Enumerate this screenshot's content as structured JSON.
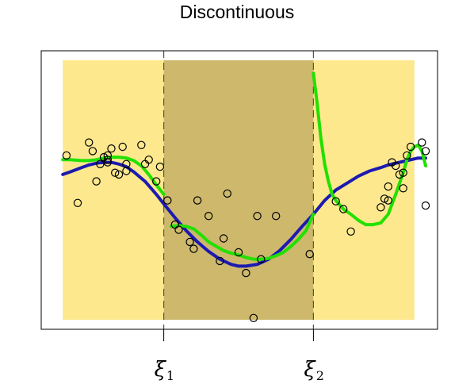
{
  "chart_data": {
    "type": "scatter",
    "title": "Discontinuous",
    "xlabel": "",
    "ylabel": "",
    "xlim": [
      0,
      1
    ],
    "ylim": [
      -1.5,
      1.5
    ],
    "axis_ticks_shown": false,
    "knots": [
      {
        "x": 0.3,
        "symbol": "ξ",
        "subscript": "1"
      },
      {
        "x": 0.7,
        "symbol": "ξ",
        "subscript": "2"
      }
    ],
    "regions": [
      {
        "from": 0.03,
        "to": 0.3,
        "color": "#fde88e"
      },
      {
        "from": 0.3,
        "to": 0.7,
        "color": "#cdb86c"
      },
      {
        "from": 0.7,
        "to": 0.97,
        "color": "#fde88e"
      }
    ],
    "points": [
      [
        0.04,
        0.4
      ],
      [
        0.07,
        -0.15
      ],
      [
        0.1,
        0.55
      ],
      [
        0.11,
        0.45
      ],
      [
        0.12,
        0.1
      ],
      [
        0.13,
        0.3
      ],
      [
        0.14,
        0.38
      ],
      [
        0.15,
        0.4
      ],
      [
        0.15,
        0.35
      ],
      [
        0.15,
        0.32
      ],
      [
        0.16,
        0.48
      ],
      [
        0.17,
        0.2
      ],
      [
        0.18,
        0.18
      ],
      [
        0.19,
        0.5
      ],
      [
        0.2,
        0.22
      ],
      [
        0.2,
        0.3
      ],
      [
        0.24,
        0.52
      ],
      [
        0.25,
        0.3
      ],
      [
        0.26,
        0.35
      ],
      [
        0.28,
        0.1
      ],
      [
        0.29,
        0.27
      ],
      [
        0.31,
        -0.12
      ],
      [
        0.33,
        -0.4
      ],
      [
        0.34,
        -0.46
      ],
      [
        0.37,
        -0.6
      ],
      [
        0.38,
        -0.68
      ],
      [
        0.39,
        -0.12
      ],
      [
        0.42,
        -0.3
      ],
      [
        0.45,
        -0.82
      ],
      [
        0.46,
        -0.56
      ],
      [
        0.47,
        -0.04
      ],
      [
        0.5,
        -0.72
      ],
      [
        0.52,
        -0.96
      ],
      [
        0.54,
        -1.48
      ],
      [
        0.55,
        -0.3
      ],
      [
        0.56,
        -0.8
      ],
      [
        0.6,
        -0.3
      ],
      [
        0.69,
        -0.74
      ],
      [
        0.76,
        -0.13
      ],
      [
        0.78,
        -0.22
      ],
      [
        0.8,
        -0.48
      ],
      [
        0.88,
        -0.2
      ],
      [
        0.89,
        -0.1
      ],
      [
        0.9,
        -0.12
      ],
      [
        0.9,
        0.04
      ],
      [
        0.91,
        0.32
      ],
      [
        0.92,
        0.28
      ],
      [
        0.93,
        0.18
      ],
      [
        0.94,
        0.2
      ],
      [
        0.94,
        0.02
      ],
      [
        0.95,
        0.4
      ],
      [
        0.96,
        0.5
      ],
      [
        0.99,
        0.55
      ],
      [
        1.0,
        0.45
      ],
      [
        1.0,
        -0.18
      ]
    ],
    "series": [
      {
        "color": "#1c1ab0",
        "width": 4,
        "x": [
          0.03,
          0.05,
          0.08,
          0.1,
          0.12,
          0.14,
          0.16,
          0.18,
          0.2,
          0.22,
          0.25,
          0.28,
          0.3,
          0.33,
          0.36,
          0.39,
          0.42,
          0.45,
          0.48,
          0.5,
          0.52,
          0.55,
          0.58,
          0.61,
          0.64,
          0.67,
          0.7,
          0.73,
          0.76,
          0.79,
          0.82,
          0.85,
          0.88,
          0.9,
          0.92,
          0.94,
          0.96,
          0.98,
          1.0
        ],
        "y": [
          0.18,
          0.21,
          0.26,
          0.29,
          0.31,
          0.32,
          0.32,
          0.3,
          0.27,
          0.21,
          0.1,
          -0.05,
          -0.16,
          -0.32,
          -0.47,
          -0.6,
          -0.71,
          -0.8,
          -0.86,
          -0.88,
          -0.88,
          -0.86,
          -0.8,
          -0.7,
          -0.57,
          -0.42,
          -0.28,
          -0.12,
          0.0,
          0.08,
          0.16,
          0.22,
          0.26,
          0.29,
          0.31,
          0.33,
          0.35,
          0.37,
          0.37
        ]
      },
      {
        "color": "#22e000",
        "width": 4,
        "segments": [
          {
            "x": [
              0.03,
              0.05,
              0.08,
              0.1,
              0.12,
              0.14,
              0.16,
              0.18,
              0.2,
              0.22,
              0.24,
              0.26,
              0.28,
              0.3
            ],
            "y": [
              0.35,
              0.35,
              0.34,
              0.34,
              0.35,
              0.37,
              0.38,
              0.38,
              0.37,
              0.34,
              0.28,
              0.18,
              0.06,
              -0.05
            ]
          },
          {
            "x": [
              0.32,
              0.34,
              0.36,
              0.38,
              0.4,
              0.42,
              0.44,
              0.46,
              0.48,
              0.5,
              0.52,
              0.54,
              0.56,
              0.58,
              0.6,
              0.62,
              0.64,
              0.66,
              0.68,
              0.7
            ],
            "y": [
              -0.42,
              -0.41,
              -0.42,
              -0.45,
              -0.52,
              -0.6,
              -0.65,
              -0.7,
              -0.73,
              -0.75,
              -0.78,
              -0.8,
              -0.8,
              -0.79,
              -0.76,
              -0.72,
              -0.65,
              -0.57,
              -0.47,
              -0.28
            ]
          },
          {
            "x": [
              0.7,
              0.71,
              0.72,
              0.73,
              0.74,
              0.75,
              0.76,
              0.78,
              0.8,
              0.82,
              0.84,
              0.86,
              0.88,
              0.9,
              0.92,
              0.94,
              0.95,
              0.96,
              0.97,
              0.98,
              0.99,
              1.0
            ],
            "y": [
              1.35,
              1.0,
              0.6,
              0.3,
              0.1,
              -0.05,
              -0.12,
              -0.22,
              -0.28,
              -0.35,
              -0.4,
              -0.4,
              -0.38,
              -0.28,
              -0.05,
              0.2,
              0.35,
              0.45,
              0.5,
              0.52,
              0.45,
              0.28
            ]
          }
        ]
      }
    ]
  }
}
